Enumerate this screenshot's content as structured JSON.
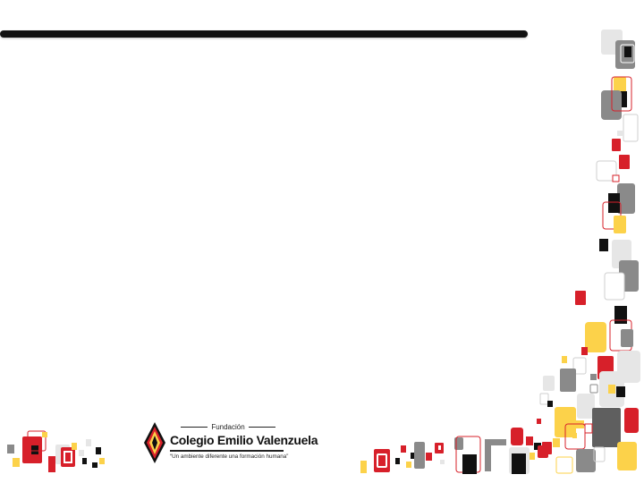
{
  "slide": {
    "title": "",
    "body": ""
  },
  "logo": {
    "fundacion": "Fundación",
    "name": "Colegio Emilio Valenzuela",
    "slogan": "“Un ambiente diferente  una formación humana”"
  },
  "colors": {
    "red": "#d7202a",
    "yellow": "#fcd24a",
    "black": "#111111",
    "gray": "#8a8a8a",
    "light_gray": "#e6e6e6"
  }
}
